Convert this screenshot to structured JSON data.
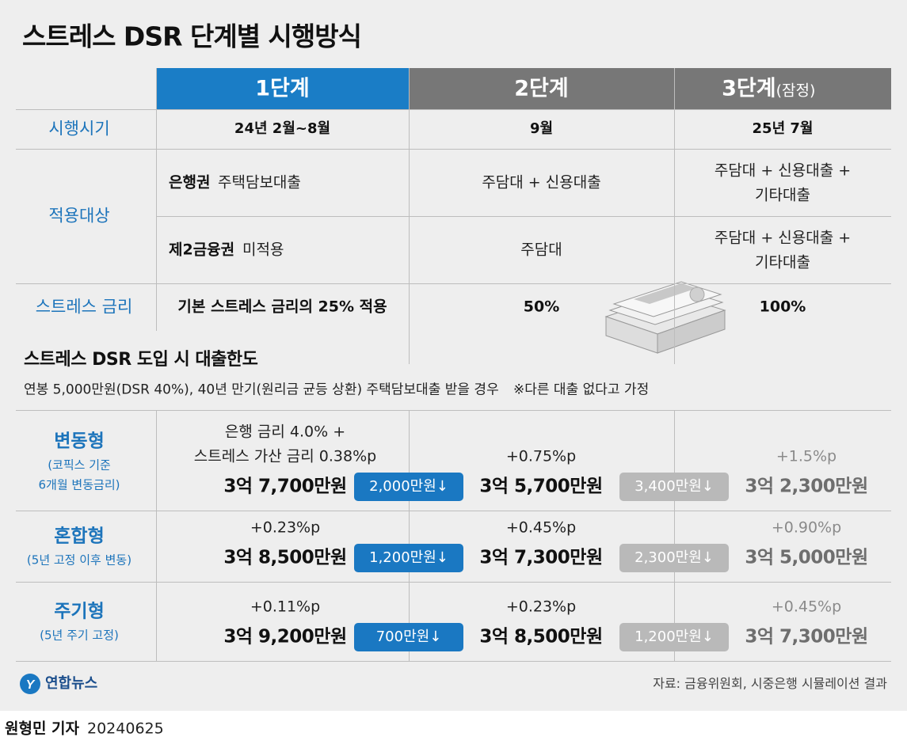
{
  "title": "스트레스 DSR 단계별 시행방식",
  "table": {
    "headers": [
      {
        "label": "1단계"
      },
      {
        "label": "2단계"
      },
      {
        "label": "3단계",
        "note": "(잠정)"
      }
    ],
    "timing": {
      "label": "시행시기",
      "values": [
        "24년 2월~8월",
        "9월",
        "25년 7월"
      ]
    },
    "scope": {
      "label": "적용대상",
      "rows": [
        {
          "sector": "은행권",
          "values": [
            [
              "주택담보대출"
            ],
            [
              "주담대 + 신용대출"
            ],
            [
              "주담대 + 신용대출 +",
              "기타대출"
            ]
          ]
        },
        {
          "sector": "제2금융권",
          "values": [
            [
              "미적용"
            ],
            [
              "주담대"
            ],
            [
              "주담대 + 신용대출 +",
              "기타대출"
            ]
          ]
        }
      ]
    },
    "rate": {
      "label": "스트레스 금리",
      "values": [
        "기본 스트레스 금리의 25% 적용",
        "50%",
        "100%"
      ]
    }
  },
  "limits": {
    "title": "스트레스 DSR 도입 시 대출한도",
    "subtitle": "연봉 5,000만원(DSR 40%), 40년 만기(원리금 균등 상환) 주택담보대출 받을 경우",
    "note": "※다른 대출 없다고 가정",
    "rows": [
      {
        "name": "변동형",
        "desc": [
          "(코픽스 기준",
          "6개월 변동금리)"
        ],
        "stages": [
          {
            "rate": [
              "은행 금리 4.0% +",
              "스트레스 가산 금리 0.38%p"
            ],
            "amount": "3억 7,700만원",
            "drop": "2,000만원↓"
          },
          {
            "rate": [
              "+0.75%p"
            ],
            "amount": "3억 5,700만원",
            "drop": "3,400만원↓"
          },
          {
            "rate": [
              "+1.5%p"
            ],
            "amount": "3억 2,300만원"
          }
        ]
      },
      {
        "name": "혼합형",
        "desc": [
          "(5년 고정 이후 변동)"
        ],
        "stages": [
          {
            "rate": [
              "+0.23%p"
            ],
            "amount": "3억 8,500만원",
            "drop": "1,200만원↓"
          },
          {
            "rate": [
              "+0.45%p"
            ],
            "amount": "3억 7,300만원",
            "drop": "2,300만원↓"
          },
          {
            "rate": [
              "+0.90%p"
            ],
            "amount": "3억 5,000만원"
          }
        ]
      },
      {
        "name": "주기형",
        "desc": [
          "(5년 주기 고정)"
        ],
        "stages": [
          {
            "rate": [
              "+0.11%p"
            ],
            "amount": "3억 9,200만원",
            "drop": "700만원↓"
          },
          {
            "rate": [
              "+0.23%p"
            ],
            "amount": "3억 8,500만원",
            "drop": "1,200만원↓"
          },
          {
            "rate": [
              "+0.45%p"
            ],
            "amount": "3억 7,300만원"
          }
        ]
      }
    ]
  },
  "source": "자료: 금융위원회, 시중은행 시뮬레이션 결과",
  "logo": "연합뉴스",
  "byline": "원형민 기자",
  "date": "20240625"
}
